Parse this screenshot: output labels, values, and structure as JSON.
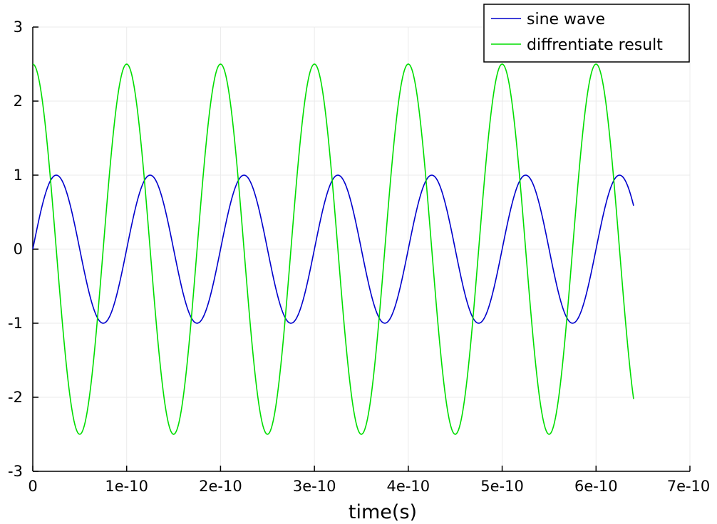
{
  "chart_data": {
    "type": "line",
    "title": "",
    "xlabel": "time(s)",
    "ylabel": "",
    "xlim": [
      0,
      7e-10
    ],
    "ylim": [
      -3,
      3
    ],
    "x_ticks": [
      0,
      1e-10,
      2e-10,
      3e-10,
      4e-10,
      5e-10,
      6e-10,
      7e-10
    ],
    "x_tick_labels": [
      "0",
      "1e-10",
      "2e-10",
      "3e-10",
      "4e-10",
      "5e-10",
      "6e-10",
      "7e-10"
    ],
    "y_ticks": [
      3,
      2,
      1,
      0,
      -1,
      -2,
      -3
    ],
    "y_tick_labels": [
      "3",
      "2",
      "1",
      "0",
      "-1",
      "-2",
      "-3"
    ],
    "grid": true,
    "legend_position": "top-right",
    "x_range": [
      0,
      6.4e-10
    ],
    "series": [
      {
        "name": "sine wave",
        "color": "#0000cc",
        "function": "sin",
        "period": 1e-10,
        "amplitude": 1.0
      },
      {
        "name": "diffrentiate result",
        "color": "#00dd00",
        "function": "cos",
        "period": 1e-10,
        "amplitude": 2.5
      }
    ]
  }
}
